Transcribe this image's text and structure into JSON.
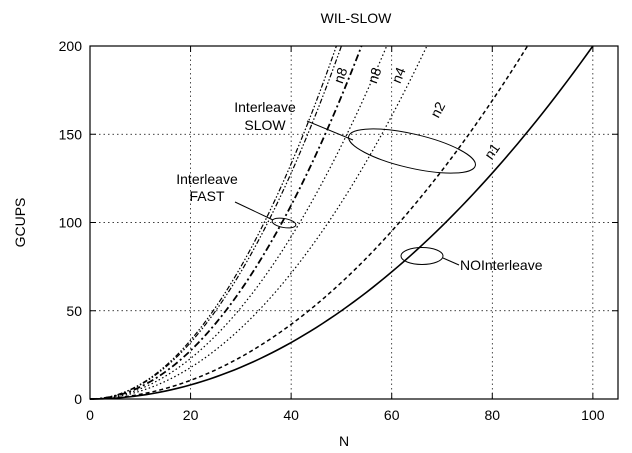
{
  "chart_data": {
    "type": "line",
    "title": "WIL-SLOW",
    "xlabel": "N",
    "ylabel": "GCUPS",
    "xlim": [
      0,
      105
    ],
    "ylim": [
      0,
      200
    ],
    "xticks": [
      0,
      20,
      40,
      60,
      80,
      100
    ],
    "yticks": [
      0,
      50,
      100,
      150,
      200
    ],
    "grid": true,
    "series": [
      {
        "name": "n1",
        "group": "NOInterleave",
        "style": "solid",
        "x": [
          0,
          10,
          20,
          30,
          40,
          50,
          60,
          70,
          80,
          90,
          100
        ],
        "y": [
          0,
          2,
          8,
          18,
          32,
          50,
          72,
          98,
          128,
          162,
          200
        ]
      },
      {
        "name": "n1",
        "group": "Interleave SLOW",
        "style": "dashed",
        "x": [
          0,
          10,
          20,
          30,
          40,
          50,
          60,
          70,
          80,
          87
        ],
        "y": [
          0,
          2.6,
          10.6,
          23.8,
          42.3,
          66.1,
          95.2,
          129.6,
          169.3,
          200
        ]
      },
      {
        "name": "n2",
        "group": "Interleave SLOW",
        "style": "dotted",
        "x": [
          0,
          10,
          20,
          30,
          40,
          50,
          60,
          67
        ],
        "y": [
          0,
          4.5,
          17.8,
          40.1,
          71.3,
          111.4,
          160.4,
          200
        ]
      },
      {
        "name": "n4",
        "group": "Interleave SLOW",
        "style": "dotted",
        "x": [
          0,
          10,
          20,
          30,
          40,
          50,
          59
        ],
        "y": [
          0,
          5.7,
          23,
          51.7,
          91.9,
          143.6,
          200
        ]
      },
      {
        "name": "n8",
        "group": "Interleave SLOW",
        "style": "dash-dot",
        "x": [
          0,
          10,
          20,
          30,
          40,
          50,
          54
        ],
        "y": [
          0,
          6.9,
          27.4,
          61.7,
          109.7,
          171.5,
          200
        ]
      },
      {
        "name": "n8",
        "group": "Interleave FAST",
        "style": "dash-dot-dot",
        "x": [
          0,
          10,
          20,
          30,
          40,
          50
        ],
        "y": [
          0,
          8,
          32,
          72,
          128,
          200
        ]
      },
      {
        "name": "",
        "group": "Interleave FAST",
        "style": "dash-dot-dot",
        "x": [
          0,
          10,
          20,
          30,
          40,
          49
        ],
        "y": [
          0,
          8.3,
          33.3,
          75,
          133.3,
          200
        ]
      }
    ],
    "annotations": {
      "noninterleave": "NOInterleave",
      "slow_line1": "Interleave",
      "slow_line2": "SLOW",
      "fast_line1": "Interleave",
      "fast_line2": "FAST",
      "curve_labels": [
        "n8",
        "n8",
        "n4",
        "n2",
        "n1"
      ]
    }
  }
}
